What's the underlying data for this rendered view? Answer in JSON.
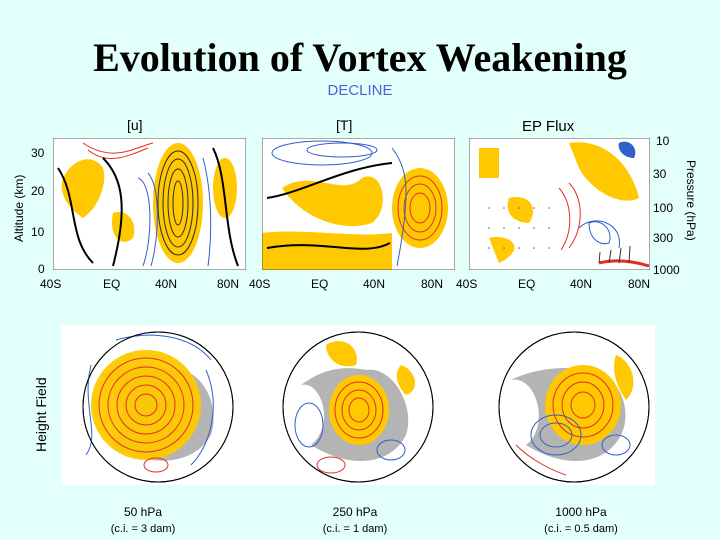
{
  "title": "Evolution of Vortex Weakening",
  "subtitle": "DECLINE",
  "panels": {
    "u_label": "[u]",
    "t_label": "[T]",
    "ep_label": "EP Flux"
  },
  "axes": {
    "altitude_label": "Altitude (km)",
    "altitude_ticks": [
      "30",
      "20",
      "10",
      "0"
    ],
    "pressure_label": "Pressure (hPa)",
    "pressure_ticks": [
      "10",
      "30",
      "100",
      "300",
      "1000"
    ],
    "lat_ticks": [
      "40S",
      "EQ",
      "40N",
      "80N"
    ]
  },
  "maps": {
    "row_label": "Height Field",
    "items": [
      {
        "level": "50 hPa",
        "ci": "(c.i. = 3 dam)"
      },
      {
        "level": "250 hPa",
        "ci": "(c.i. = 1 dam)"
      },
      {
        "level": "1000 hPa",
        "ci": "(c.i. = 0.5 dam)"
      }
    ]
  },
  "colors": {
    "positive_shading": "#ffc800",
    "positive_contour": "#e03020",
    "negative_contour": "#3060c8",
    "land": "#b4b4b4",
    "background": "#e3fff9"
  }
}
